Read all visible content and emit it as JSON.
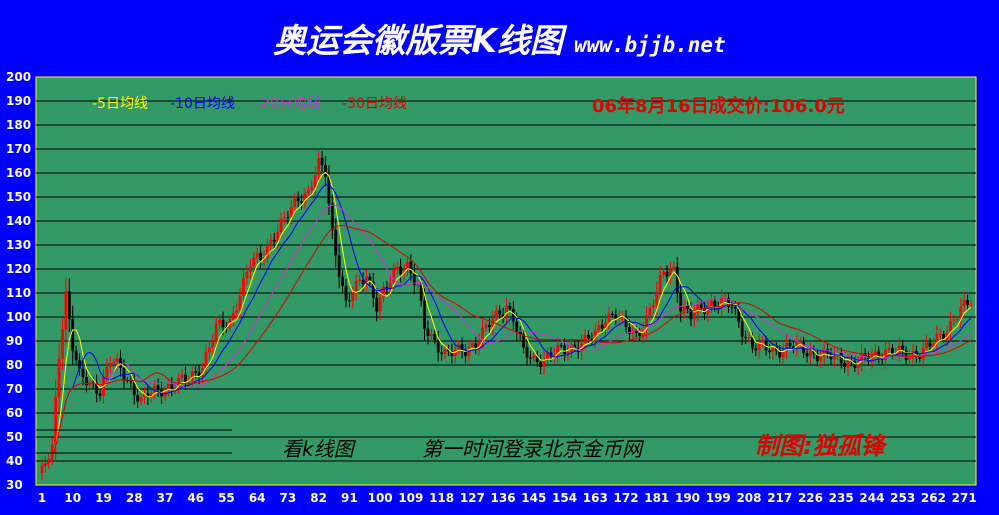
{
  "title": "奥运会徽版票K线图",
  "site": "www.bjjb.net",
  "chart_data": {
    "type": "candlestick",
    "ylim": [
      30,
      200
    ],
    "y_ticks": [
      30,
      40,
      50,
      60,
      70,
      80,
      90,
      100,
      110,
      120,
      130,
      140,
      150,
      160,
      170,
      180,
      190,
      200
    ],
    "x_ticks": [
      1,
      10,
      19,
      28,
      37,
      46,
      55,
      64,
      73,
      82,
      91,
      100,
      109,
      118,
      127,
      136,
      145,
      154,
      163,
      172,
      181,
      190,
      199,
      208,
      217,
      226,
      235,
      244,
      253,
      262,
      271
    ],
    "x_range": [
      1,
      273
    ],
    "grid": true,
    "legend": [
      {
        "label": "-5日均线",
        "color": "#ffff00"
      },
      {
        "label": "-10日均线",
        "color": "#0000ff"
      },
      {
        "label": "-20日均线",
        "color": "#cc33cc"
      },
      {
        "label": "-30日均线",
        "color": "#dd0000"
      }
    ],
    "annotation_price": "06年8月16日成交价:106.0元",
    "caption": "看k线图",
    "slogan": "第一时间登录北京金币网",
    "credit": "制图:独孤锋",
    "price_keypoints": [
      [
        1,
        35
      ],
      [
        4,
        45
      ],
      [
        6,
        85
      ],
      [
        8,
        110
      ],
      [
        10,
        88
      ],
      [
        12,
        75
      ],
      [
        15,
        72
      ],
      [
        18,
        70
      ],
      [
        21,
        82
      ],
      [
        24,
        78
      ],
      [
        27,
        72
      ],
      [
        30,
        65
      ],
      [
        33,
        68
      ],
      [
        36,
        70
      ],
      [
        40,
        72
      ],
      [
        44,
        74
      ],
      [
        48,
        80
      ],
      [
        52,
        95
      ],
      [
        56,
        98
      ],
      [
        59,
        110
      ],
      [
        62,
        122
      ],
      [
        65,
        125
      ],
      [
        68,
        132
      ],
      [
        72,
        140
      ],
      [
        76,
        150
      ],
      [
        79,
        152
      ],
      [
        82,
        163
      ],
      [
        84,
        160
      ],
      [
        86,
        135
      ],
      [
        88,
        120
      ],
      [
        90,
        105
      ],
      [
        93,
        112
      ],
      [
        96,
        118
      ],
      [
        99,
        105
      ],
      [
        102,
        112
      ],
      [
        105,
        120
      ],
      [
        108,
        122
      ],
      [
        111,
        112
      ],
      [
        113,
        95
      ],
      [
        116,
        90
      ],
      [
        119,
        85
      ],
      [
        122,
        85
      ],
      [
        125,
        86
      ],
      [
        128,
        90
      ],
      [
        131,
        95
      ],
      [
        134,
        100
      ],
      [
        137,
        105
      ],
      [
        139,
        100
      ],
      [
        142,
        85
      ],
      [
        145,
        82
      ],
      [
        148,
        83
      ],
      [
        151,
        85
      ],
      [
        154,
        86
      ],
      [
        157,
        88
      ],
      [
        160,
        90
      ],
      [
        163,
        92
      ],
      [
        166,
        100
      ],
      [
        169,
        102
      ],
      [
        172,
        95
      ],
      [
        175,
        92
      ],
      [
        178,
        100
      ],
      [
        181,
        110
      ],
      [
        183,
        118
      ],
      [
        186,
        120
      ],
      [
        188,
        105
      ],
      [
        191,
        100
      ],
      [
        194,
        103
      ],
      [
        197,
        106
      ],
      [
        200,
        106
      ],
      [
        203,
        104
      ],
      [
        206,
        95
      ],
      [
        209,
        88
      ],
      [
        212,
        87
      ],
      [
        215,
        86
      ],
      [
        218,
        87
      ],
      [
        221,
        88
      ],
      [
        224,
        86
      ],
      [
        227,
        85
      ],
      [
        230,
        84
      ],
      [
        233,
        83
      ],
      [
        236,
        82
      ],
      [
        239,
        81
      ],
      [
        242,
        82
      ],
      [
        245,
        84
      ],
      [
        248,
        86
      ],
      [
        251,
        85
      ],
      [
        254,
        84
      ],
      [
        257,
        85
      ],
      [
        260,
        87
      ],
      [
        263,
        90
      ],
      [
        266,
        95
      ],
      [
        268,
        100
      ],
      [
        270,
        103
      ],
      [
        273,
        106
      ]
    ]
  }
}
